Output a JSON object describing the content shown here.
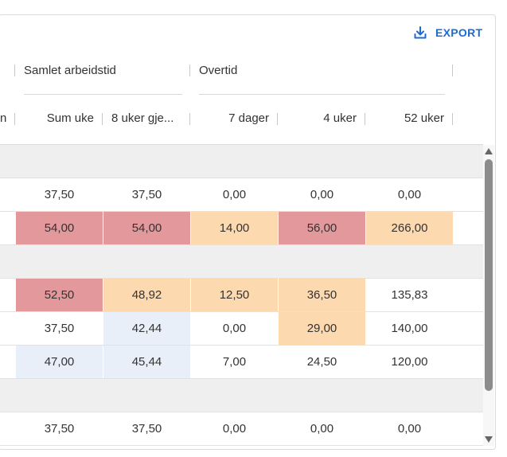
{
  "toolbar": {
    "export_label": "EXPORT",
    "export_icon": "download-icon"
  },
  "groups": {
    "samlet": "Samlet arbeidstid",
    "overtid": "Overtid"
  },
  "columns": {
    "partial": "n",
    "sum_uke": "Sum uke",
    "uker8": "8 uker gje...",
    "dager7": "7 dager",
    "uker4": "4 uker",
    "uker52": "52 uker"
  },
  "colors": {
    "red": "#e3989c",
    "orange": "#fdd9b0",
    "blue": "#e9eff8",
    "accent": "#1c6cd1"
  },
  "rows": [
    {
      "type": "group",
      "cells": []
    },
    {
      "type": "data",
      "cells": [
        {
          "value": "37,50",
          "tone": ""
        },
        {
          "value": "37,50",
          "tone": ""
        },
        {
          "value": "0,00",
          "tone": ""
        },
        {
          "value": "0,00",
          "tone": ""
        },
        {
          "value": "0,00",
          "tone": ""
        }
      ]
    },
    {
      "type": "data",
      "cells": [
        {
          "value": "54,00",
          "tone": "red"
        },
        {
          "value": "54,00",
          "tone": "red"
        },
        {
          "value": "14,00",
          "tone": "orange"
        },
        {
          "value": "56,00",
          "tone": "red"
        },
        {
          "value": "266,00",
          "tone": "orange"
        }
      ]
    },
    {
      "type": "group",
      "cells": []
    },
    {
      "type": "data",
      "cells": [
        {
          "value": "52,50",
          "tone": "red"
        },
        {
          "value": "48,92",
          "tone": "orange"
        },
        {
          "value": "12,50",
          "tone": "orange"
        },
        {
          "value": "36,50",
          "tone": "orange"
        },
        {
          "value": "135,83",
          "tone": ""
        }
      ]
    },
    {
      "type": "data",
      "cells": [
        {
          "value": "37,50",
          "tone": ""
        },
        {
          "value": "42,44",
          "tone": "blue"
        },
        {
          "value": "0,00",
          "tone": ""
        },
        {
          "value": "29,00",
          "tone": "orange"
        },
        {
          "value": "140,00",
          "tone": ""
        }
      ]
    },
    {
      "type": "data",
      "cells": [
        {
          "value": "47,00",
          "tone": "blue"
        },
        {
          "value": "45,44",
          "tone": "blue"
        },
        {
          "value": "7,00",
          "tone": ""
        },
        {
          "value": "24,50",
          "tone": ""
        },
        {
          "value": "120,00",
          "tone": ""
        }
      ]
    },
    {
      "type": "group",
      "cells": []
    },
    {
      "type": "data",
      "cells": [
        {
          "value": "37,50",
          "tone": ""
        },
        {
          "value": "37,50",
          "tone": ""
        },
        {
          "value": "0,00",
          "tone": ""
        },
        {
          "value": "0,00",
          "tone": ""
        },
        {
          "value": "0,00",
          "tone": ""
        }
      ]
    }
  ]
}
